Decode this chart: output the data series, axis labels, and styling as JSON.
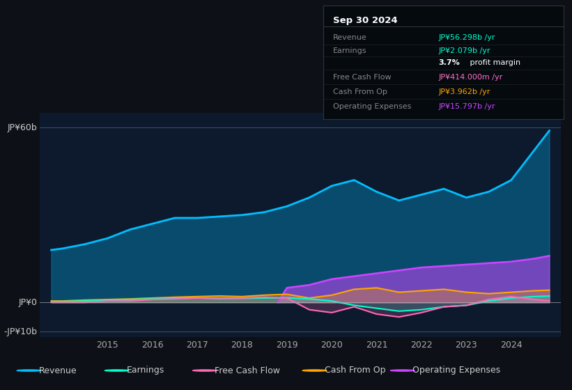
{
  "bg_color": "#0d1117",
  "chart_bg": "#0d1a2e",
  "ylabel_60": "JP¥60b",
  "ylabel_0": "JP¥0",
  "ylabel_neg10": "-JP¥10b",
  "ylim": [
    -12,
    65
  ],
  "xlim": [
    2013.5,
    2025.1
  ],
  "colors": {
    "revenue": "#00bfff",
    "earnings": "#00ffcc",
    "free_cash_flow": "#ff69b4",
    "cash_from_op": "#ffa500",
    "operating_expenses": "#cc44ff"
  },
  "info_box": {
    "title": "Sep 30 2024",
    "rows": [
      {
        "label": "Revenue",
        "value": "JP¥56.298b /yr",
        "color": "#00ffcc",
        "bold_prefix": ""
      },
      {
        "label": "Earnings",
        "value": "JP¥2.079b /yr",
        "color": "#00ffcc",
        "bold_prefix": ""
      },
      {
        "label": "",
        "value": " profit margin",
        "color": "#ffffff",
        "bold_prefix": "3.7%"
      },
      {
        "label": "Free Cash Flow",
        "value": "JP¥414.000m /yr",
        "color": "#ff6ec7",
        "bold_prefix": ""
      },
      {
        "label": "Cash From Op",
        "value": "JP¥3.962b /yr",
        "color": "#ffa500",
        "bold_prefix": ""
      },
      {
        "label": "Operating Expenses",
        "value": "JP¥15.797b /yr",
        "color": "#cc44ff",
        "bold_prefix": ""
      }
    ]
  },
  "revenue_x": [
    2013.75,
    2014.0,
    2014.5,
    2015.0,
    2015.5,
    2016.0,
    2016.5,
    2017.0,
    2017.5,
    2018.0,
    2018.5,
    2019.0,
    2019.5,
    2020.0,
    2020.5,
    2021.0,
    2021.5,
    2022.0,
    2022.5,
    2023.0,
    2023.5,
    2024.0,
    2024.5,
    2024.85
  ],
  "revenue_y": [
    18,
    18.5,
    20,
    22,
    25,
    27,
    29,
    29,
    29.5,
    30,
    31,
    33,
    36,
    40,
    42,
    38,
    35,
    37,
    39,
    36,
    38,
    42,
    52,
    59
  ],
  "earnings_x": [
    2013.75,
    2014.0,
    2014.5,
    2015.0,
    2015.5,
    2016.0,
    2016.5,
    2017.0,
    2017.5,
    2018.0,
    2018.5,
    2019.0,
    2019.5,
    2020.0,
    2020.5,
    2021.0,
    2021.5,
    2022.0,
    2022.5,
    2023.0,
    2023.5,
    2024.0,
    2024.5,
    2024.85
  ],
  "earnings_y": [
    0.2,
    0.3,
    0.5,
    0.8,
    1.0,
    1.2,
    1.5,
    1.5,
    1.3,
    1.4,
    1.5,
    1.6,
    1.2,
    0.5,
    -1.0,
    -2.0,
    -3.0,
    -2.5,
    -1.5,
    -1.0,
    0.5,
    1.5,
    2.0,
    2.2
  ],
  "fcf_x": [
    2013.75,
    2014.0,
    2014.5,
    2015.0,
    2015.5,
    2016.0,
    2016.5,
    2017.0,
    2017.5,
    2018.0,
    2018.5,
    2019.0,
    2019.5,
    2020.0,
    2020.5,
    2021.0,
    2021.5,
    2022.0,
    2022.5,
    2023.0,
    2023.5,
    2024.0,
    2024.5,
    2024.85
  ],
  "fcf_y": [
    0.0,
    0.0,
    0.0,
    0.5,
    0.5,
    1.0,
    1.2,
    1.5,
    1.5,
    1.5,
    1.8,
    1.5,
    -2.5,
    -3.5,
    -1.5,
    -4.0,
    -5.0,
    -3.5,
    -1.5,
    -1.0,
    1.0,
    2.0,
    1.0,
    0.5
  ],
  "cashfromop_x": [
    2013.75,
    2014.0,
    2014.5,
    2015.0,
    2015.5,
    2016.0,
    2016.5,
    2017.0,
    2017.5,
    2018.0,
    2018.5,
    2019.0,
    2019.5,
    2020.0,
    2020.5,
    2021.0,
    2021.5,
    2022.0,
    2022.5,
    2023.0,
    2023.5,
    2024.0,
    2024.5,
    2024.85
  ],
  "cashfromop_y": [
    0.5,
    0.5,
    0.8,
    1.0,
    1.2,
    1.5,
    1.8,
    2.0,
    2.2,
    2.0,
    2.5,
    2.8,
    1.5,
    2.5,
    4.5,
    5.0,
    3.5,
    4.0,
    4.5,
    3.5,
    3.0,
    3.5,
    4.0,
    4.2
  ],
  "opex_x": [
    2018.8,
    2019.0,
    2019.5,
    2020.0,
    2020.5,
    2021.0,
    2021.5,
    2022.0,
    2022.5,
    2023.0,
    2023.5,
    2024.0,
    2024.5,
    2024.85
  ],
  "opex_y": [
    0,
    5,
    6,
    8,
    9,
    10,
    11,
    12,
    12.5,
    13,
    13.5,
    14,
    15,
    16
  ],
  "legend_items": [
    {
      "label": "Revenue",
      "color": "#00bfff"
    },
    {
      "label": "Earnings",
      "color": "#00ffcc"
    },
    {
      "label": "Free Cash Flow",
      "color": "#ff69b4"
    },
    {
      "label": "Cash From Op",
      "color": "#ffa500"
    },
    {
      "label": "Operating Expenses",
      "color": "#cc44ff"
    }
  ]
}
